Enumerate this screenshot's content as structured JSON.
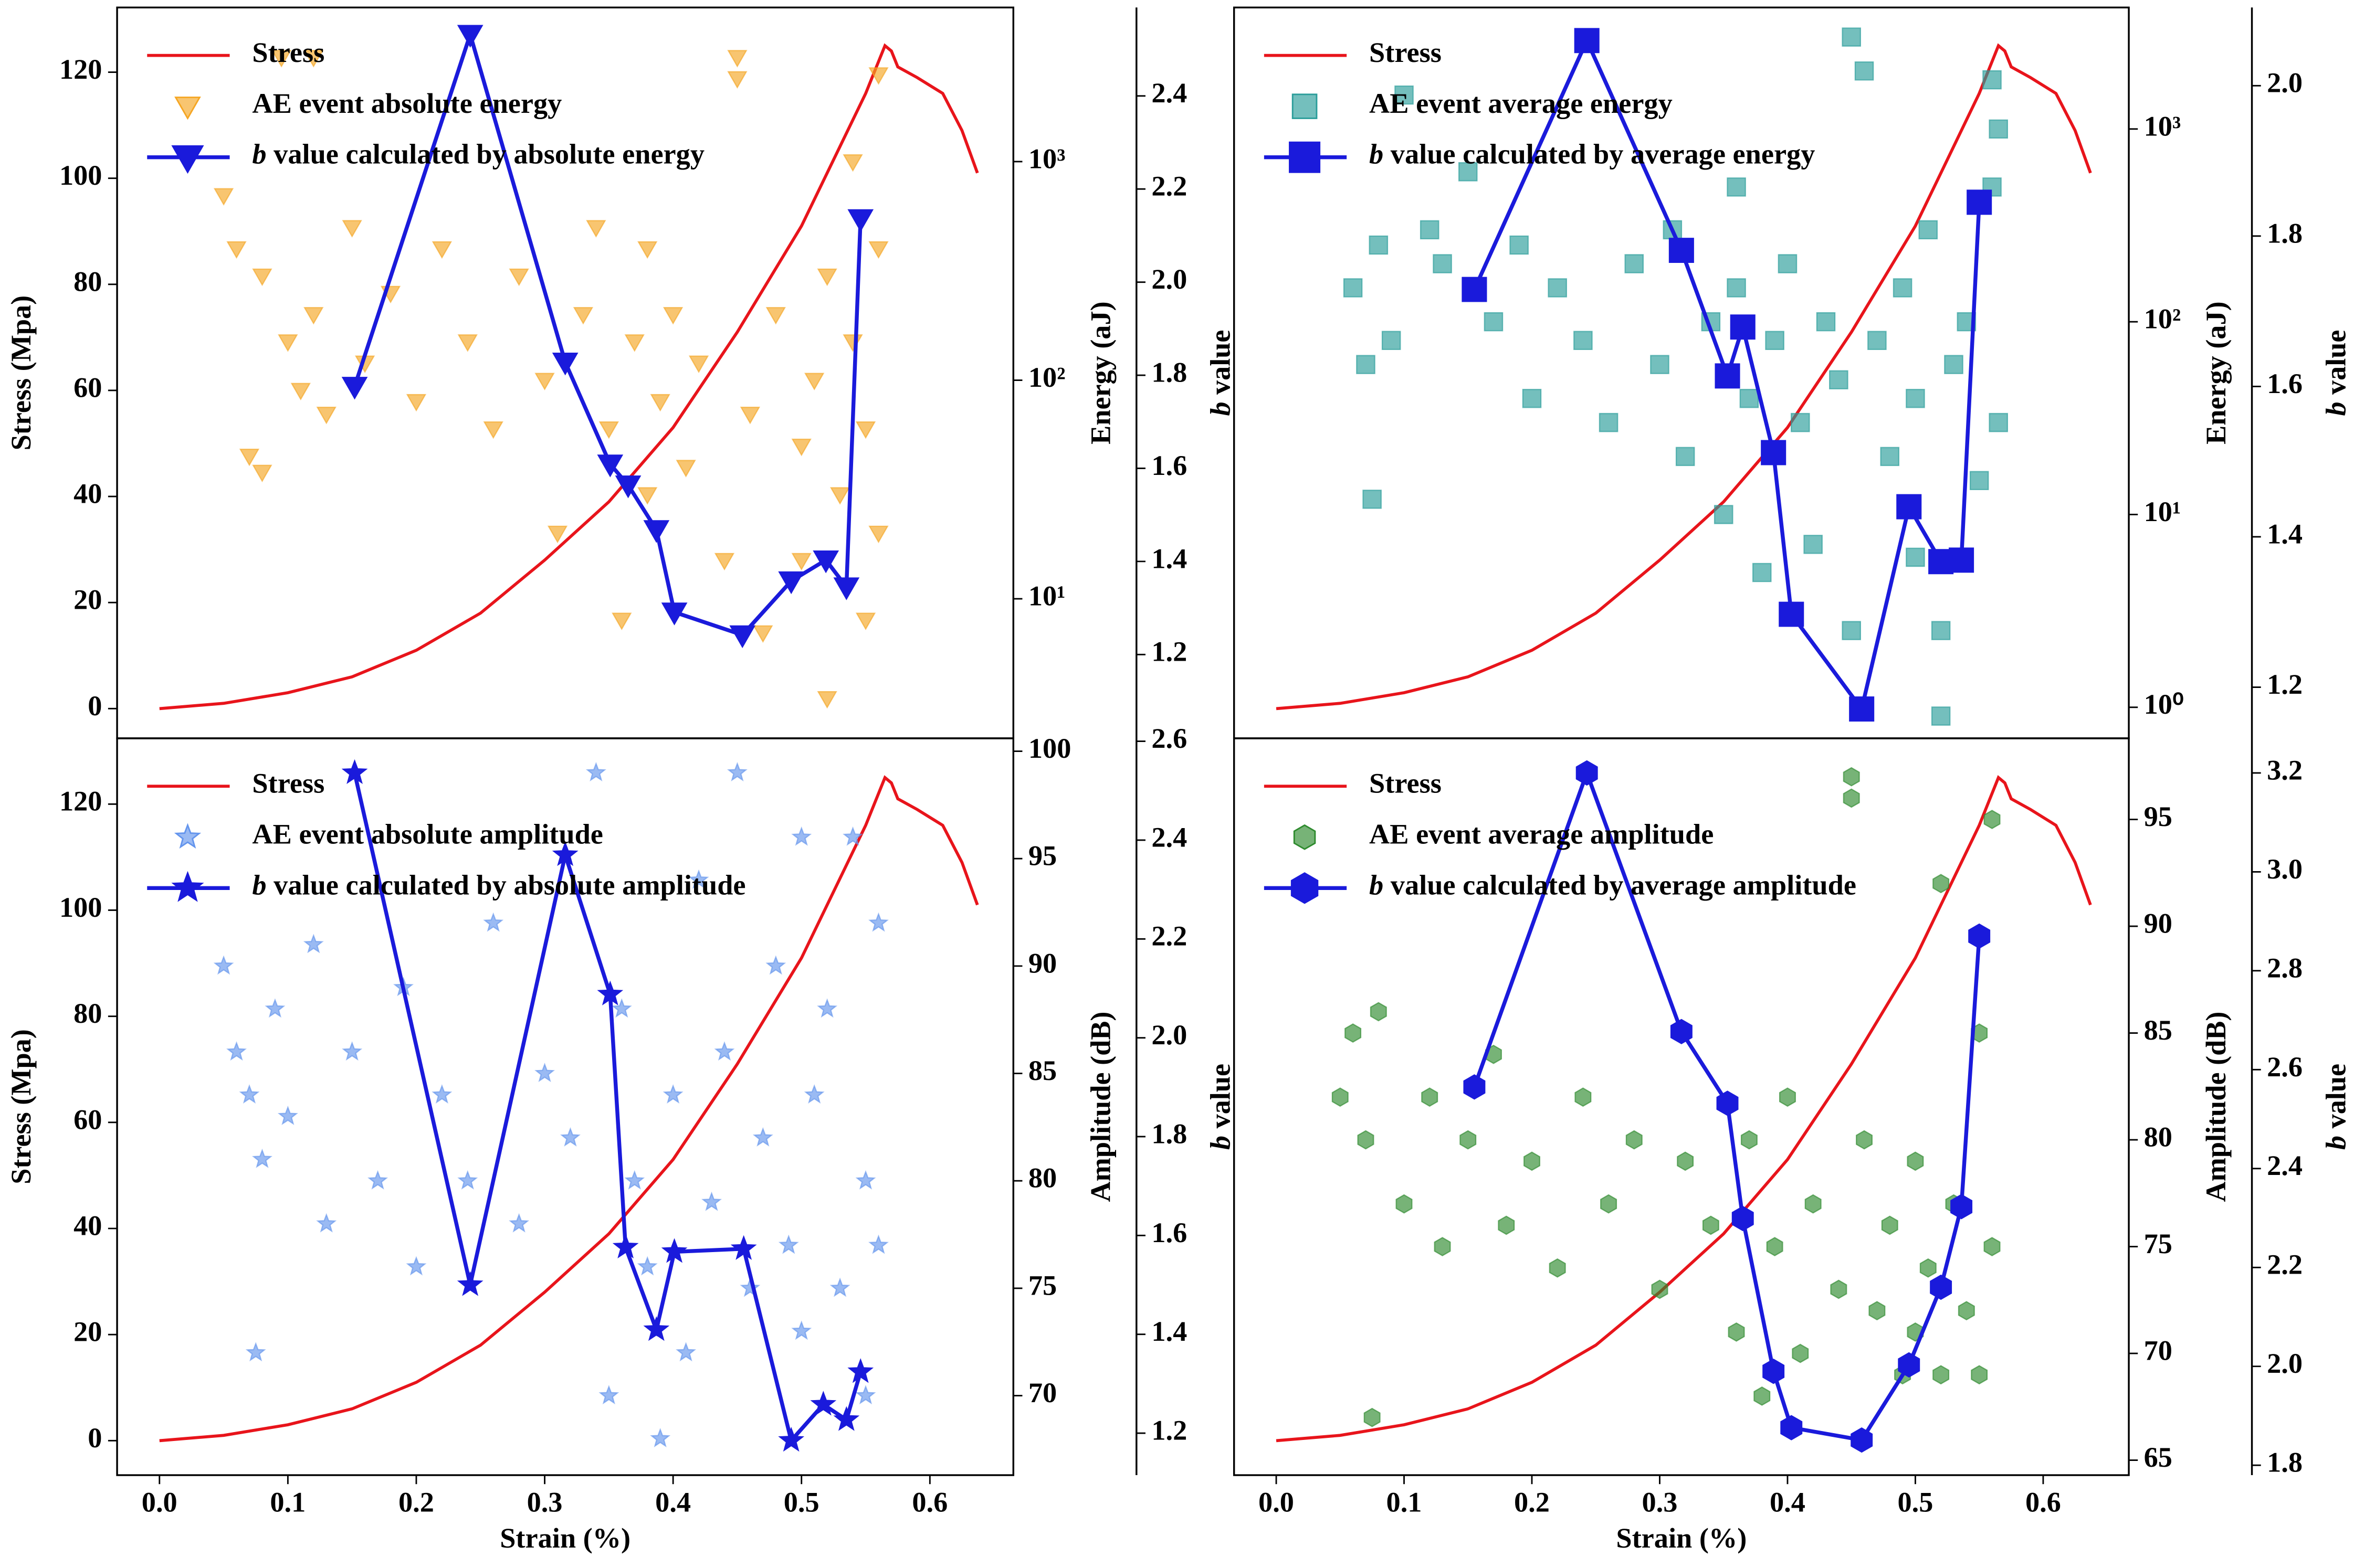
{
  "chart_data": [
    {
      "type": "combo",
      "ylabel": "Stress (Mpa)",
      "y2label": "Energy (aJ)",
      "y3label": "b value",
      "xlim": [
        -0.033,
        0.665
      ],
      "ylim": [
        -5.6,
        132.2
      ],
      "yticks": [
        0,
        20,
        40,
        60,
        80,
        100,
        120
      ],
      "y2lim": [
        2.3,
        5070
      ],
      "y2scale": "log",
      "y2ticks": [
        {
          "value": 10,
          "label": "10¹"
        },
        {
          "value": 100,
          "label": "10²"
        },
        {
          "value": 1000,
          "label": "10³"
        }
      ],
      "y3lim": [
        1.02,
        2.59
      ],
      "y3ticks": [
        1.2,
        1.4,
        1.6,
        1.8,
        {
          "value": 2,
          "label": "2.0"
        },
        2.2,
        2.4
      ],
      "series": [
        {
          "name": "Stress",
          "type": "line",
          "axis": "y",
          "color": "#e8141b",
          "x": [
            0,
            0.05,
            0.1,
            0.15,
            0.2,
            0.25,
            0.3,
            0.35,
            0.4,
            0.45,
            0.5,
            0.55,
            0.565,
            0.57,
            0.575,
            0.59,
            0.61,
            0.625,
            0.637
          ],
          "values": [
            0,
            1,
            3,
            6,
            11,
            18,
            28,
            39,
            53,
            71,
            91,
            116,
            125,
            124,
            121,
            119,
            116,
            109,
            101
          ]
        },
        {
          "name": "AE event absolute energy",
          "type": "scatter",
          "axis": "y2",
          "marker": "triangle-down",
          "color": "#f5a623",
          "x": [
            0.05,
            0.06,
            0.07,
            0.08,
            0.08,
            0.095,
            0.1,
            0.11,
            0.12,
            0.12,
            0.13,
            0.15,
            0.16,
            0.18,
            0.2,
            0.22,
            0.24,
            0.26,
            0.28,
            0.3,
            0.31,
            0.33,
            0.34,
            0.35,
            0.36,
            0.37,
            0.38,
            0.38,
            0.39,
            0.4,
            0.41,
            0.42,
            0.44,
            0.45,
            0.45,
            0.46,
            0.47,
            0.48,
            0.5,
            0.5,
            0.51,
            0.52,
            0.52,
            0.53,
            0.54,
            0.54,
            0.55,
            0.55,
            0.56,
            0.56,
            0.56
          ],
          "values": [
            700,
            400,
            45,
            38,
            300,
            3000,
            150,
            90,
            3000,
            200,
            70,
            500,
            120,
            250,
            80,
            400,
            150,
            60,
            300,
            100,
            20,
            200,
            500,
            60,
            8,
            150,
            30,
            400,
            80,
            200,
            40,
            120,
            15,
            3000,
            2400,
            70,
            7,
            200,
            50,
            15,
            100,
            3.5,
            300,
            30,
            150,
            1000,
            60,
            8,
            2500,
            400,
            20
          ]
        },
        {
          "name": "b value calculated by absolute energy",
          "type": "line",
          "axis": "y3",
          "marker": "triangle-down",
          "color": "#1a1adb",
          "x": [
            0.152,
            0.242,
            0.316,
            0.351,
            0.365,
            0.387,
            0.401,
            0.454,
            0.492,
            0.519,
            0.535,
            0.546
          ],
          "values": [
            1.776,
            2.532,
            1.828,
            1.609,
            1.564,
            1.468,
            1.291,
            1.242,
            1.358,
            1.403,
            1.345,
            2.136
          ]
        }
      ]
    },
    {
      "type": "combo",
      "y2label": "Energy (aJ)",
      "y3label": "b value",
      "xlim": [
        -0.033,
        0.667
      ],
      "ylim": [
        -5.6,
        132.2
      ],
      "y2lim": [
        0.69,
        4270
      ],
      "y2scale": "log",
      "y2ticks": [
        {
          "value": 1,
          "label": "10⁰"
        },
        {
          "value": 10,
          "label": "10¹"
        },
        {
          "value": 100,
          "label": "10²"
        },
        {
          "value": 1000,
          "label": "10³"
        }
      ],
      "y3lim": [
        1.132,
        2.104
      ],
      "y3ticks": [
        1.2,
        1.4,
        1.6,
        1.8,
        {
          "value": 2,
          "label": "2.0"
        }
      ],
      "series": [
        {
          "name": "Stress",
          "type": "line",
          "axis": "y",
          "color": "#e8141b",
          "x": [
            0,
            0.05,
            0.1,
            0.15,
            0.2,
            0.25,
            0.3,
            0.35,
            0.4,
            0.45,
            0.5,
            0.55,
            0.565,
            0.57,
            0.575,
            0.59,
            0.61,
            0.625,
            0.637
          ],
          "values": [
            0,
            1,
            3,
            6,
            11,
            18,
            28,
            39,
            53,
            71,
            91,
            116,
            125,
            124,
            121,
            119,
            116,
            109,
            101
          ]
        },
        {
          "name": "AE event average energy",
          "type": "scatter",
          "axis": "y2",
          "marker": "square",
          "color": "#2a9d9a",
          "x": [
            0.06,
            0.07,
            0.075,
            0.08,
            0.09,
            0.1,
            0.12,
            0.13,
            0.15,
            0.17,
            0.19,
            0.2,
            0.22,
            0.24,
            0.26,
            0.28,
            0.3,
            0.31,
            0.32,
            0.34,
            0.35,
            0.36,
            0.36,
            0.37,
            0.38,
            0.39,
            0.4,
            0.41,
            0.42,
            0.43,
            0.44,
            0.45,
            0.45,
            0.46,
            0.47,
            0.48,
            0.49,
            0.5,
            0.5,
            0.51,
            0.52,
            0.52,
            0.53,
            0.54,
            0.55,
            0.56,
            0.56,
            0.565,
            0.565
          ],
          "values": [
            150,
            60,
            12,
            250,
            80,
            1500,
            300,
            200,
            600,
            100,
            250,
            40,
            150,
            80,
            30,
            200,
            60,
            300,
            20,
            100,
            10,
            150,
            500,
            40,
            5,
            80,
            200,
            30,
            7,
            100,
            50,
            2.5,
            3000,
            2000,
            80,
            20,
            150,
            40,
            6,
            300,
            0.9,
            2.5,
            60,
            100,
            15,
            500,
            1800,
            30,
            1000
          ]
        },
        {
          "name": "b value calculated by average energy",
          "type": "line",
          "axis": "y3",
          "marker": "square",
          "color": "#1a1adb",
          "x": [
            0.155,
            0.243,
            0.317,
            0.353,
            0.365,
            0.389,
            0.403,
            0.458,
            0.495,
            0.52,
            0.536,
            0.55
          ],
          "values": [
            1.729,
            2.06,
            1.781,
            1.614,
            1.679,
            1.512,
            1.297,
            1.171,
            1.44,
            1.367,
            1.369,
            1.845
          ]
        }
      ]
    },
    {
      "type": "combo",
      "xlabel": "Strain (%)",
      "ylabel": "Stress (Mpa)",
      "y2label": "Amplitude (dB)",
      "y3label": "b value",
      "xlim": [
        -0.033,
        0.665
      ],
      "xticks": [
        {
          "value": 0,
          "label": "0.0"
        },
        0.1,
        0.2,
        0.3,
        0.4,
        0.5,
        0.6
      ],
      "ylim": [
        -6.5,
        132.4
      ],
      "yticks": [
        0,
        20,
        40,
        60,
        80,
        100,
        120
      ],
      "y2lim": [
        66.3,
        100.6
      ],
      "y2ticks": [
        70,
        75,
        80,
        85,
        90,
        95,
        100
      ],
      "y3lim": [
        1.115,
        2.606
      ],
      "y3ticks": [
        1.2,
        1.4,
        1.6,
        1.8,
        {
          "value": 2,
          "label": "2.0"
        },
        2.2,
        2.4,
        2.6
      ],
      "series": [
        {
          "name": "Stress",
          "type": "line",
          "axis": "y",
          "color": "#e8141b",
          "x": [
            0,
            0.05,
            0.1,
            0.15,
            0.2,
            0.25,
            0.3,
            0.35,
            0.4,
            0.45,
            0.5,
            0.55,
            0.565,
            0.57,
            0.575,
            0.59,
            0.61,
            0.625,
            0.637
          ],
          "values": [
            0,
            1,
            3,
            6,
            11,
            18,
            28,
            39,
            53,
            71,
            91,
            116,
            125,
            124,
            121,
            119,
            116,
            109,
            101
          ]
        },
        {
          "name": "AE event absolute amplitude",
          "type": "scatter",
          "axis": "y2",
          "marker": "star",
          "color": "#6495ed",
          "x": [
            0.05,
            0.06,
            0.07,
            0.075,
            0.08,
            0.09,
            0.1,
            0.12,
            0.13,
            0.15,
            0.17,
            0.19,
            0.2,
            0.22,
            0.24,
            0.26,
            0.28,
            0.3,
            0.32,
            0.34,
            0.35,
            0.36,
            0.37,
            0.38,
            0.39,
            0.4,
            0.41,
            0.42,
            0.43,
            0.44,
            0.45,
            0.46,
            0.47,
            0.48,
            0.49,
            0.5,
            0.5,
            0.51,
            0.52,
            0.53,
            0.54,
            0.55,
            0.55,
            0.56,
            0.56
          ],
          "values": [
            90,
            86,
            84,
            72,
            81,
            88,
            83,
            91,
            78,
            86,
            80,
            89,
            76,
            84,
            80,
            92,
            78,
            85,
            82,
            99,
            70,
            88,
            80,
            76,
            68,
            84,
            72,
            94,
            79,
            86,
            99,
            75,
            82,
            90,
            77,
            96,
            73,
            84,
            88,
            75,
            96,
            80,
            70,
            92,
            77
          ]
        },
        {
          "name": "b value calculated by absolute amplitude",
          "type": "line",
          "axis": "y3",
          "marker": "star",
          "color": "#1a1adb",
          "x": [
            0.152,
            0.242,
            0.316,
            0.351,
            0.363,
            0.387,
            0.401,
            0.455,
            0.492,
            0.517,
            0.535,
            0.546
          ],
          "values": [
            2.536,
            1.5,
            2.37,
            2.088,
            1.576,
            1.409,
            1.567,
            1.573,
            1.185,
            1.258,
            1.227,
            1.324
          ]
        }
      ]
    },
    {
      "type": "combo",
      "xlabel": "Strain (%)",
      "y2label": "Amplitude (dB)",
      "y3label": "b value",
      "xlim": [
        -0.033,
        0.667
      ],
      "xticks": [
        {
          "value": 0,
          "label": "0.0"
        },
        0.1,
        0.2,
        0.3,
        0.4,
        0.5,
        0.6
      ],
      "ylim": [
        -6.5,
        132.4
      ],
      "y2lim": [
        64.3,
        98.8
      ],
      "y2ticks": [
        65,
        70,
        75,
        80,
        85,
        90,
        95
      ],
      "y3lim": [
        1.78,
        3.27
      ],
      "y3ticks": [
        1.8,
        {
          "value": 2,
          "label": "2.0"
        },
        2.2,
        2.4,
        2.6,
        2.8,
        {
          "value": 3,
          "label": "3.0"
        },
        3.2
      ],
      "series": [
        {
          "name": "Stress",
          "type": "line",
          "axis": "y",
          "color": "#e8141b",
          "x": [
            0,
            0.05,
            0.1,
            0.15,
            0.2,
            0.25,
            0.3,
            0.35,
            0.4,
            0.45,
            0.5,
            0.55,
            0.565,
            0.57,
            0.575,
            0.59,
            0.61,
            0.625,
            0.637
          ],
          "values": [
            0,
            1,
            3,
            6,
            11,
            18,
            28,
            39,
            53,
            71,
            91,
            116,
            125,
            124,
            121,
            119,
            116,
            109,
            101
          ]
        },
        {
          "name": "AE event average amplitude",
          "type": "scatter",
          "axis": "y2",
          "marker": "hexagon",
          "color": "#2e8b2e",
          "x": [
            0.05,
            0.06,
            0.07,
            0.075,
            0.08,
            0.1,
            0.12,
            0.13,
            0.15,
            0.17,
            0.18,
            0.2,
            0.22,
            0.24,
            0.26,
            0.28,
            0.3,
            0.32,
            0.34,
            0.36,
            0.37,
            0.38,
            0.39,
            0.4,
            0.41,
            0.42,
            0.44,
            0.45,
            0.45,
            0.46,
            0.47,
            0.48,
            0.49,
            0.5,
            0.5,
            0.51,
            0.52,
            0.52,
            0.53,
            0.54,
            0.55,
            0.55,
            0.56,
            0.56
          ],
          "values": [
            82,
            85,
            80,
            67,
            86,
            77,
            82,
            75,
            80,
            84,
            76,
            79,
            74,
            82,
            77,
            80,
            73,
            79,
            76,
            71,
            80,
            68,
            75,
            82,
            70,
            77,
            73,
            97,
            96,
            80,
            72,
            76,
            69,
            79,
            71,
            74,
            92,
            69,
            77,
            72,
            85,
            69,
            95,
            75
          ]
        },
        {
          "name": "b value calculated by average amplitude",
          "type": "line",
          "axis": "y3",
          "marker": "hexagon",
          "color": "#1a1adb",
          "x": [
            0.155,
            0.243,
            0.317,
            0.353,
            0.365,
            0.389,
            0.403,
            0.458,
            0.495,
            0.52,
            0.536,
            0.55
          ],
          "values": [
            2.565,
            3.2,
            2.677,
            2.532,
            2.299,
            1.99,
            1.876,
            1.851,
            2.003,
            2.16,
            2.323,
            2.87
          ]
        }
      ]
    }
  ]
}
